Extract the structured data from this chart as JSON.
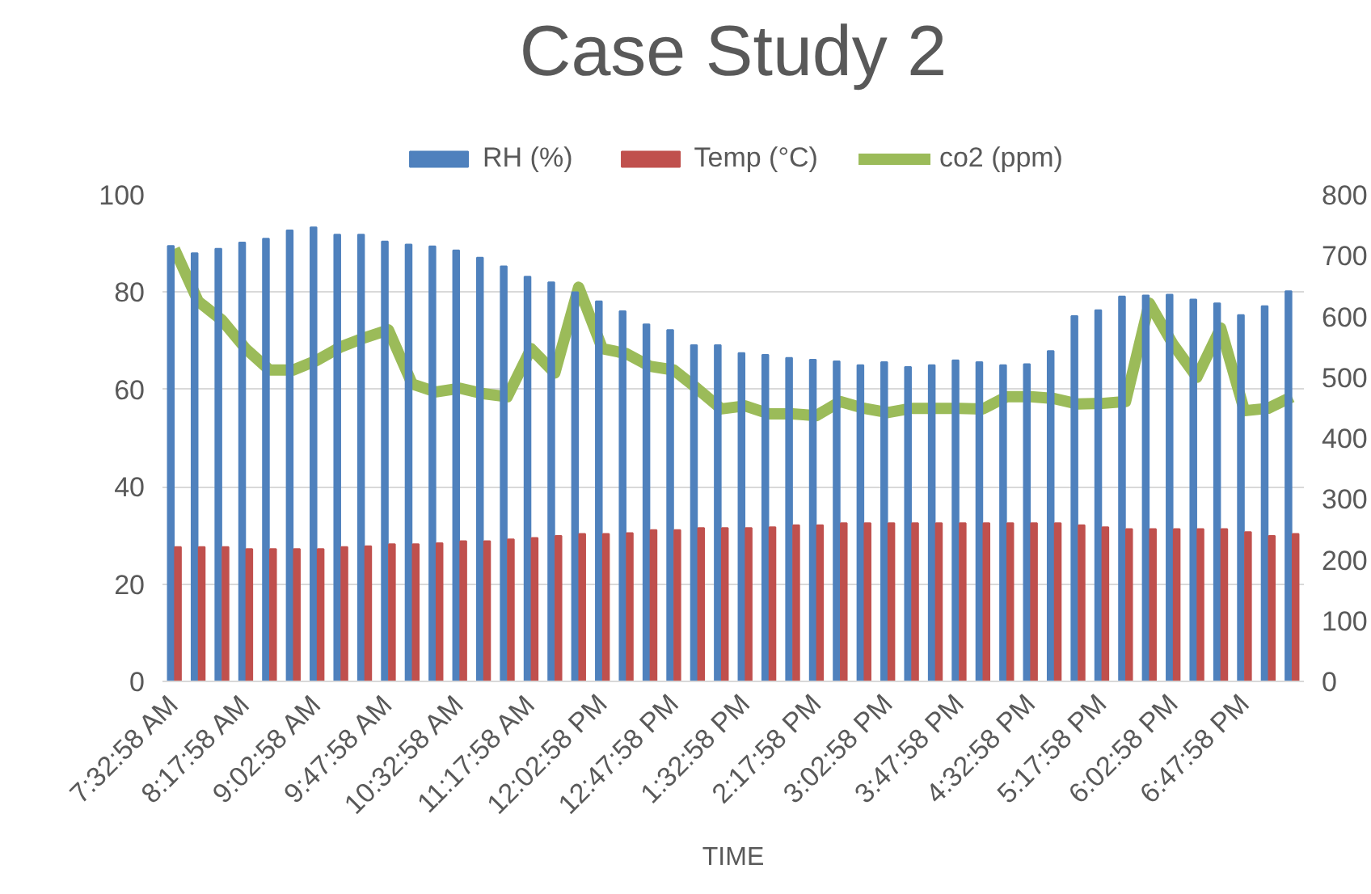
{
  "chart_data": {
    "type": "bar",
    "title": "Case Study 2",
    "xlabel": "TIME",
    "categories": [
      "7:32:58 AM",
      null,
      null,
      "8:17:58 AM",
      null,
      null,
      "9:02:58 AM",
      null,
      null,
      "9:47:58 AM",
      null,
      null,
      "10:32:58 AM",
      null,
      null,
      "11:17:58 AM",
      null,
      null,
      "12:02:58 PM",
      null,
      null,
      "12:47:58 PM",
      null,
      null,
      "1:32:58 PM",
      null,
      null,
      "2:17:58 PM",
      null,
      null,
      "3:02:58 PM",
      null,
      null,
      "3:47:58 PM",
      null,
      null,
      "4:32:58 PM",
      null,
      null,
      "5:17:58 PM",
      null,
      null,
      "6:02:58 PM",
      null,
      null,
      "6:47:58 PM",
      null,
      null
    ],
    "series": [
      {
        "name": "RH (%)",
        "color": "#4f81bd",
        "values": [
          89.5,
          88.0,
          88.9,
          90.2,
          91.0,
          92.7,
          93.3,
          91.8,
          91.8,
          90.4,
          89.8,
          89.4,
          88.6,
          87.1,
          85.3,
          83.2,
          82.0,
          80.0,
          78.1,
          76.1,
          73.4,
          72.2,
          69.1,
          69.1,
          67.5,
          67.1,
          66.5,
          66.1,
          65.8,
          65.0,
          65.6,
          64.6,
          65.0,
          66.0,
          65.6,
          65.0,
          65.2,
          67.9,
          75.1,
          76.3,
          79.1,
          79.3,
          79.5,
          78.5,
          77.7,
          75.3,
          77.1,
          80.2
        ]
      },
      {
        "name": "Temp (°C)",
        "color": "#c0504d",
        "values": [
          27.6,
          27.6,
          27.6,
          27.2,
          27.2,
          27.2,
          27.2,
          27.6,
          27.8,
          28.2,
          28.2,
          28.4,
          28.8,
          28.8,
          29.2,
          29.5,
          29.9,
          30.3,
          30.3,
          30.5,
          31.1,
          31.1,
          31.5,
          31.5,
          31.5,
          31.7,
          32.1,
          32.1,
          32.5,
          32.5,
          32.5,
          32.5,
          32.5,
          32.5,
          32.5,
          32.5,
          32.5,
          32.5,
          32.1,
          31.7,
          31.3,
          31.3,
          31.3,
          31.3,
          31.3,
          30.7,
          29.9,
          30.3
        ]
      },
      {
        "name": "co2 (ppm)",
        "type": "line",
        "axis": "y2",
        "color": "#9bbb59",
        "values": [
          711,
          625,
          594,
          547,
          512,
          512,
          528,
          550,
          565,
          578,
          489,
          476,
          482,
          473,
          468,
          547,
          507,
          648,
          547,
          539,
          518,
          512,
          481,
          448,
          453,
          440,
          440,
          437,
          460,
          449,
          442,
          449,
          449,
          449,
          448,
          468,
          468,
          465,
          456,
          457,
          460,
          622,
          554,
          500,
          581,
          445,
          449,
          468
        ]
      }
    ],
    "ylim": [
      0,
      100
    ],
    "yticks": [
      0,
      20,
      40,
      60,
      80,
      100
    ],
    "y2lim": [
      0,
      800
    ],
    "y2ticks": [
      0,
      100,
      200,
      300,
      400,
      500,
      600,
      700,
      800
    ],
    "grid": "y",
    "legend": "top"
  }
}
